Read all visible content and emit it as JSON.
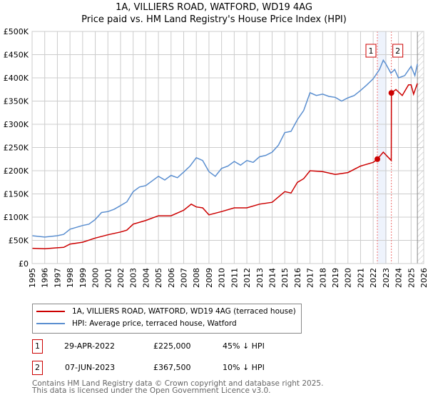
{
  "chart_data": {
    "type": "line",
    "title": "1A, VILLIERS ROAD, WATFORD, WD19 4AG",
    "subtitle": "Price paid vs. HM Land Registry's House Price Index (HPI)",
    "xlim": [
      1995,
      2026
    ],
    "ylim": [
      0,
      500000
    ],
    "y_ticks": [
      0,
      50000,
      100000,
      150000,
      200000,
      250000,
      300000,
      350000,
      400000,
      450000,
      500000
    ],
    "y_tick_labels": [
      "£0",
      "£50K",
      "£100K",
      "£150K",
      "£200K",
      "£250K",
      "£300K",
      "£350K",
      "£400K",
      "£450K",
      "£500K"
    ],
    "x_tick_labels": [
      "1995",
      "1996",
      "1997",
      "1998",
      "1999",
      "2000",
      "2001",
      "2002",
      "2003",
      "2004",
      "2005",
      "2006",
      "2007",
      "2008",
      "2009",
      "2010",
      "2011",
      "2012",
      "2013",
      "2014",
      "2015",
      "2016",
      "2017",
      "2018",
      "2019",
      "2020",
      "2021",
      "2022",
      "2023",
      "2024",
      "2025",
      "2026"
    ],
    "grid": true,
    "shaded_range": [
      2022.33,
      2023.07
    ],
    "hatched_from": 2025.5,
    "series": [
      {
        "name": "1A, VILLIERS ROAD, WATFORD, WD19 4AG (terraced house)",
        "color": "#cc0000",
        "x": [
          1995,
          1996,
          1997,
          1997.5,
          1998,
          1999,
          2000,
          2001,
          2002,
          2002.5,
          2003,
          2004,
          2005,
          2006,
          2007,
          2007.6,
          2008,
          2008.5,
          2009,
          2010,
          2011,
          2012,
          2013,
          2014,
          2015,
          2015.5,
          2016,
          2016.5,
          2017,
          2018,
          2019,
          2020,
          2021,
          2022,
          2022.33,
          2022.8,
          2023.43,
          2023.44,
          2023.8,
          2024.3,
          2024.8,
          2025.0,
          2025.2,
          2025.5
        ],
        "y": [
          33000,
          32000,
          34000,
          35000,
          42000,
          46000,
          55000,
          62000,
          68000,
          72000,
          85000,
          93000,
          103000,
          103000,
          115000,
          128000,
          122000,
          120000,
          105000,
          112000,
          120000,
          120000,
          128000,
          132000,
          155000,
          152000,
          175000,
          183000,
          200000,
          198000,
          192000,
          196000,
          210000,
          218000,
          225000,
          240000,
          222000,
          367500,
          375000,
          362000,
          385000,
          385000,
          365000,
          388000
        ]
      },
      {
        "name": "HPI: Average price, terraced house, Watford",
        "color": "#5b8fd0",
        "x": [
          1995,
          1996,
          1997,
          1997.5,
          1998,
          1999,
          1999.5,
          2000,
          2000.5,
          2001,
          2001.5,
          2002,
          2002.5,
          2003,
          2003.5,
          2004,
          2004.5,
          2005,
          2005.5,
          2006,
          2006.5,
          2007,
          2007.5,
          2008,
          2008.5,
          2009,
          2009.5,
          2010,
          2010.5,
          2011,
          2011.5,
          2012,
          2012.5,
          2013,
          2013.5,
          2014,
          2014.5,
          2015,
          2015.5,
          2016,
          2016.5,
          2017,
          2017.5,
          2018,
          2018.5,
          2019,
          2019.5,
          2020,
          2020.5,
          2021,
          2021.5,
          2022,
          2022.5,
          2022.8,
          2023,
          2023.4,
          2023.7,
          2024,
          2024.5,
          2025,
          2025.3,
          2025.5
        ],
        "y": [
          60000,
          57000,
          60000,
          63000,
          74000,
          82000,
          85000,
          95000,
          110000,
          112000,
          117000,
          125000,
          133000,
          155000,
          165000,
          168000,
          178000,
          188000,
          180000,
          190000,
          185000,
          197000,
          210000,
          228000,
          222000,
          198000,
          188000,
          205000,
          210000,
          220000,
          212000,
          222000,
          218000,
          230000,
          233000,
          240000,
          255000,
          282000,
          285000,
          310000,
          330000,
          368000,
          362000,
          365000,
          360000,
          358000,
          350000,
          357000,
          362000,
          373000,
          385000,
          398000,
          418000,
          438000,
          430000,
          410000,
          418000,
          400000,
          405000,
          425000,
          405000,
          430000
        ]
      }
    ],
    "markers": [
      {
        "label": "1",
        "x": 2022.33,
        "y": 225000
      },
      {
        "label": "2",
        "x": 2023.44,
        "y": 367500
      }
    ]
  },
  "legend": {
    "property": "1A, VILLIERS ROAD, WATFORD, WD19 4AG (terraced house)",
    "hpi": "HPI: Average price, terraced house, Watford"
  },
  "transactions": [
    {
      "num": "1",
      "date": "29-APR-2022",
      "price": "£225,000",
      "delta": "45% ↓ HPI"
    },
    {
      "num": "2",
      "date": "07-JUN-2023",
      "price": "£367,500",
      "delta": "10% ↓ HPI"
    }
  ],
  "footer": {
    "line1": "Contains HM Land Registry data © Crown copyright and database right 2025.",
    "line2": "This data is licensed under the Open Government Licence v3.0."
  }
}
